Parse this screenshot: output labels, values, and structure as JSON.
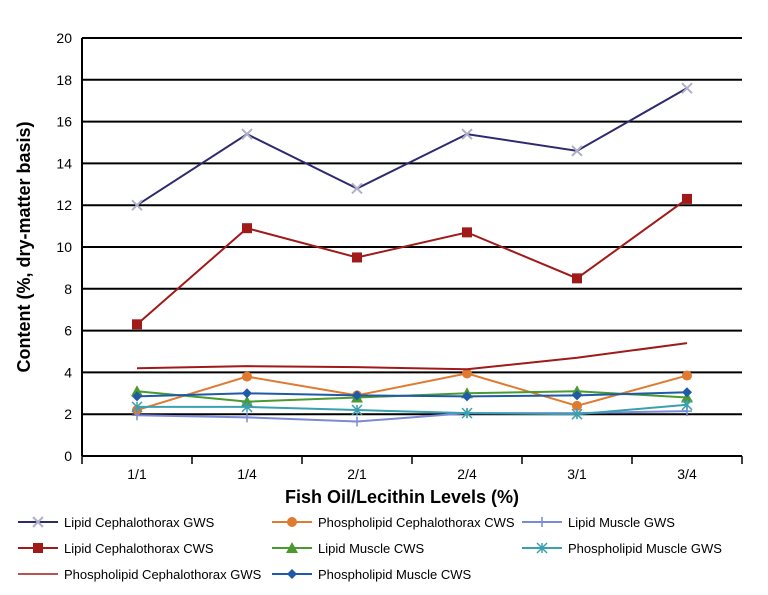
{
  "chart_data": {
    "type": "line",
    "title": "",
    "xlabel": "Fish Oil/Lecithin Levels (%)",
    "ylabel": "Content (%, dry-matter basis)",
    "ylim": [
      0,
      20
    ],
    "yticks": [
      0,
      2,
      4,
      6,
      8,
      10,
      12,
      14,
      16,
      18,
      20
    ],
    "grid": "horizontal",
    "legend": "bottom",
    "categories": [
      "1/1",
      "1/4",
      "2/1",
      "2/4",
      "3/1",
      "3/4"
    ],
    "series": [
      {
        "name": "Lipid Cephalothorax GWS",
        "color": "#2e2a6e",
        "marker": "x",
        "markerColor": "#b0b0c8",
        "values": [
          12.0,
          15.4,
          12.8,
          15.4,
          14.6,
          17.6
        ]
      },
      {
        "name": "Phospholipid Cephalothorax CWS",
        "color": "#e07a30",
        "marker": "circle",
        "values": [
          2.2,
          3.8,
          2.9,
          3.95,
          2.4,
          3.85
        ]
      },
      {
        "name": "Lipid Muscle GWS",
        "color": "#7a8ad8",
        "marker": "plus",
        "values": [
          1.95,
          1.85,
          1.65,
          2.05,
          2.05,
          2.15
        ]
      },
      {
        "name": "Lipid Cephalothorax CWS",
        "color": "#a01a1a",
        "marker": "square",
        "values": [
          6.3,
          10.9,
          9.5,
          10.7,
          8.5,
          12.3
        ]
      },
      {
        "name": "Lipid Muscle CWS",
        "color": "#4a9a30",
        "marker": "triangle",
        "values": [
          3.1,
          2.6,
          2.8,
          3.0,
          3.1,
          2.8
        ]
      },
      {
        "name": "Phospholipid Muscle GWS",
        "color": "#3aa0b0",
        "marker": "star",
        "values": [
          2.35,
          2.35,
          2.2,
          2.05,
          2.0,
          2.45
        ]
      },
      {
        "name": "Phospholipid Cephalothorax GWS",
        "color": "#a01a1a",
        "marker": "none",
        "values": [
          4.2,
          4.3,
          4.25,
          4.15,
          4.7,
          5.4
        ]
      },
      {
        "name": "Phospholipid Muscle CWS",
        "color": "#1f5aa8",
        "marker": "diamond",
        "values": [
          2.85,
          3.0,
          2.9,
          2.85,
          2.9,
          3.05
        ]
      }
    ]
  }
}
